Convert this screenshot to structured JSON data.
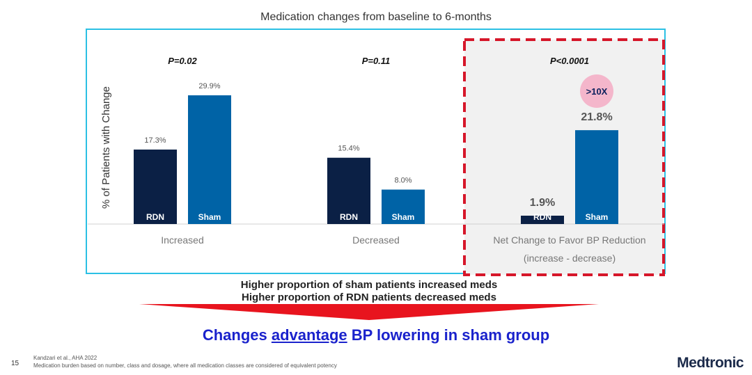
{
  "title": "Medication changes from baseline to 6-months",
  "chart_data": {
    "type": "bar",
    "ylabel": "% of Patients with Change",
    "xlabel": "",
    "ylim": [
      0,
      35
    ],
    "grid": false,
    "legend": "none",
    "groups": [
      {
        "label": "Increased",
        "label_line2": "",
        "p_value": "P=0.02",
        "highlight": false,
        "bars": [
          {
            "series": "RDN",
            "value": 17.3,
            "label": "17.3%",
            "color": "#0b2045"
          },
          {
            "series": "Sham",
            "value": 29.9,
            "label": "29.9%",
            "color": "#0063a6"
          }
        ]
      },
      {
        "label": "Decreased",
        "label_line2": "",
        "p_value": "P=0.11",
        "highlight": false,
        "bars": [
          {
            "series": "RDN",
            "value": 15.4,
            "label": "15.4%",
            "color": "#0b2045"
          },
          {
            "series": "Sham",
            "value": 8.0,
            "label": "8.0%",
            "color": "#0063a6"
          }
        ]
      },
      {
        "label": "Net Change to Favor BP Reduction",
        "label_line2": "(increase - decrease)",
        "p_value": "P<0.0001",
        "highlight": true,
        "badge": ">10X",
        "bars": [
          {
            "series": "RDN",
            "value": 1.9,
            "label": "1.9%",
            "color": "#0b2045"
          },
          {
            "series": "Sham",
            "value": 21.8,
            "label": "21.8%",
            "color": "#0063a6"
          }
        ]
      }
    ]
  },
  "callout": {
    "line1": "Higher proportion of sham patients increased meds",
    "line2": "Higher proportion of RDN patients decreased meds"
  },
  "conclusion": {
    "part1": "Changes ",
    "emphasis": "advantage",
    "part2": " BP lowering in sham group"
  },
  "footer": {
    "page_number": "15",
    "citation": "Kandzari et al., AHA 2022",
    "footnote": "Medication burden based on number, class and dosage, where all medication classes are considered of equivalent potency",
    "logo": "Medtronic"
  },
  "colors": {
    "rdn": "#0b2045",
    "sham": "#0063a6",
    "frame": "#2bc0e4",
    "highlight_border": "#d6172a",
    "arrow": "#e8141e",
    "badge": "#f4b6cb",
    "conclusion": "#1a22cc"
  }
}
